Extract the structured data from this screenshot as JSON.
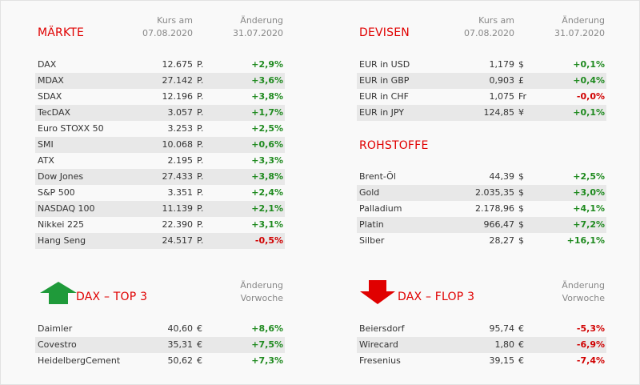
{
  "colors": {
    "accent": "#e00000",
    "positive": "#1f8a1f",
    "negative": "#d00000",
    "arrow_up": "#1f9a3a",
    "arrow_down": "#e00000"
  },
  "maerkte": {
    "title": "MÄRKTE",
    "col1": "Kurs am\n07.08.2020",
    "col2": "Änderung\n31.07.2020",
    "rows": [
      {
        "name": "DAX",
        "value": "12.675",
        "unit": "P.",
        "change": "+2,9%"
      },
      {
        "name": "MDAX",
        "value": "27.142",
        "unit": "P.",
        "change": "+3,6%"
      },
      {
        "name": "SDAX",
        "value": "12.196",
        "unit": "P.",
        "change": "+3,8%"
      },
      {
        "name": "TecDAX",
        "value": "3.057",
        "unit": "P.",
        "change": "+1,7%"
      },
      {
        "name": "Euro STOXX 50",
        "value": "3.253",
        "unit": "P.",
        "change": "+2,5%"
      },
      {
        "name": "SMI",
        "value": "10.068",
        "unit": "P.",
        "change": "+0,6%"
      },
      {
        "name": "ATX",
        "value": "2.195",
        "unit": "P.",
        "change": "+3,3%"
      },
      {
        "name": "Dow Jones",
        "value": "27.433",
        "unit": "P.",
        "change": "+3,8%"
      },
      {
        "name": "S&P 500",
        "value": "3.351",
        "unit": "P.",
        "change": "+2,4%"
      },
      {
        "name": "NASDAQ 100",
        "value": "11.139",
        "unit": "P.",
        "change": "+2,1%"
      },
      {
        "name": "Nikkei 225",
        "value": "22.390",
        "unit": "P.",
        "change": "+3,1%"
      },
      {
        "name": "Hang Seng",
        "value": "24.517",
        "unit": "P.",
        "change": "-0,5%"
      }
    ]
  },
  "devisen": {
    "title": "DEVISEN",
    "col1": "Kurs am\n07.08.2020",
    "col2": "Änderung\n31.07.2020",
    "rows": [
      {
        "name": "EUR in USD",
        "value": "1,179",
        "unit": "$",
        "change": "+0,1%"
      },
      {
        "name": "EUR in GBP",
        "value": "0,903",
        "unit": "£",
        "change": "+0,4%"
      },
      {
        "name": "EUR in CHF",
        "value": "1,075",
        "unit": "Fr",
        "change": "-0,0%"
      },
      {
        "name": "EUR in JPY",
        "value": "124,85",
        "unit": "¥",
        "change": "+0,1%"
      }
    ]
  },
  "rohstoffe": {
    "title": "ROHSTOFFE",
    "rows": [
      {
        "name": "Brent-Öl",
        "value": "44,39",
        "unit": "$",
        "change": "+2,5%"
      },
      {
        "name": "Gold",
        "value": "2.035,35",
        "unit": "$",
        "change": "+3,0%"
      },
      {
        "name": "Palladium",
        "value": "2.178,96",
        "unit": "$",
        "change": "+4,1%"
      },
      {
        "name": "Platin",
        "value": "966,47",
        "unit": "$",
        "change": "+7,2%"
      },
      {
        "name": "Silber",
        "value": "28,27",
        "unit": "$",
        "change": "+16,1%"
      }
    ]
  },
  "top3": {
    "title": "DAX – TOP 3",
    "icon": "arrow-up-icon",
    "col2": "Änderung\nVorwoche",
    "rows": [
      {
        "name": "Daimler",
        "value": "40,60",
        "unit": "€",
        "change": "+8,6%"
      },
      {
        "name": "Covestro",
        "value": "35,31",
        "unit": "€",
        "change": "+7,5%"
      },
      {
        "name": "HeidelbergCement",
        "value": "50,62",
        "unit": "€",
        "change": "+7,3%"
      }
    ]
  },
  "flop3": {
    "title": "DAX – FLOP 3",
    "icon": "arrow-down-icon",
    "col2": "Änderung\nVorwoche",
    "rows": [
      {
        "name": "Beiersdorf",
        "value": "95,74",
        "unit": "€",
        "change": "-5,3%"
      },
      {
        "name": "Wirecard",
        "value": "1,80",
        "unit": "€",
        "change": "-6,9%"
      },
      {
        "name": "Fresenius",
        "value": "39,15",
        "unit": "€",
        "change": "-7,4%"
      }
    ]
  }
}
